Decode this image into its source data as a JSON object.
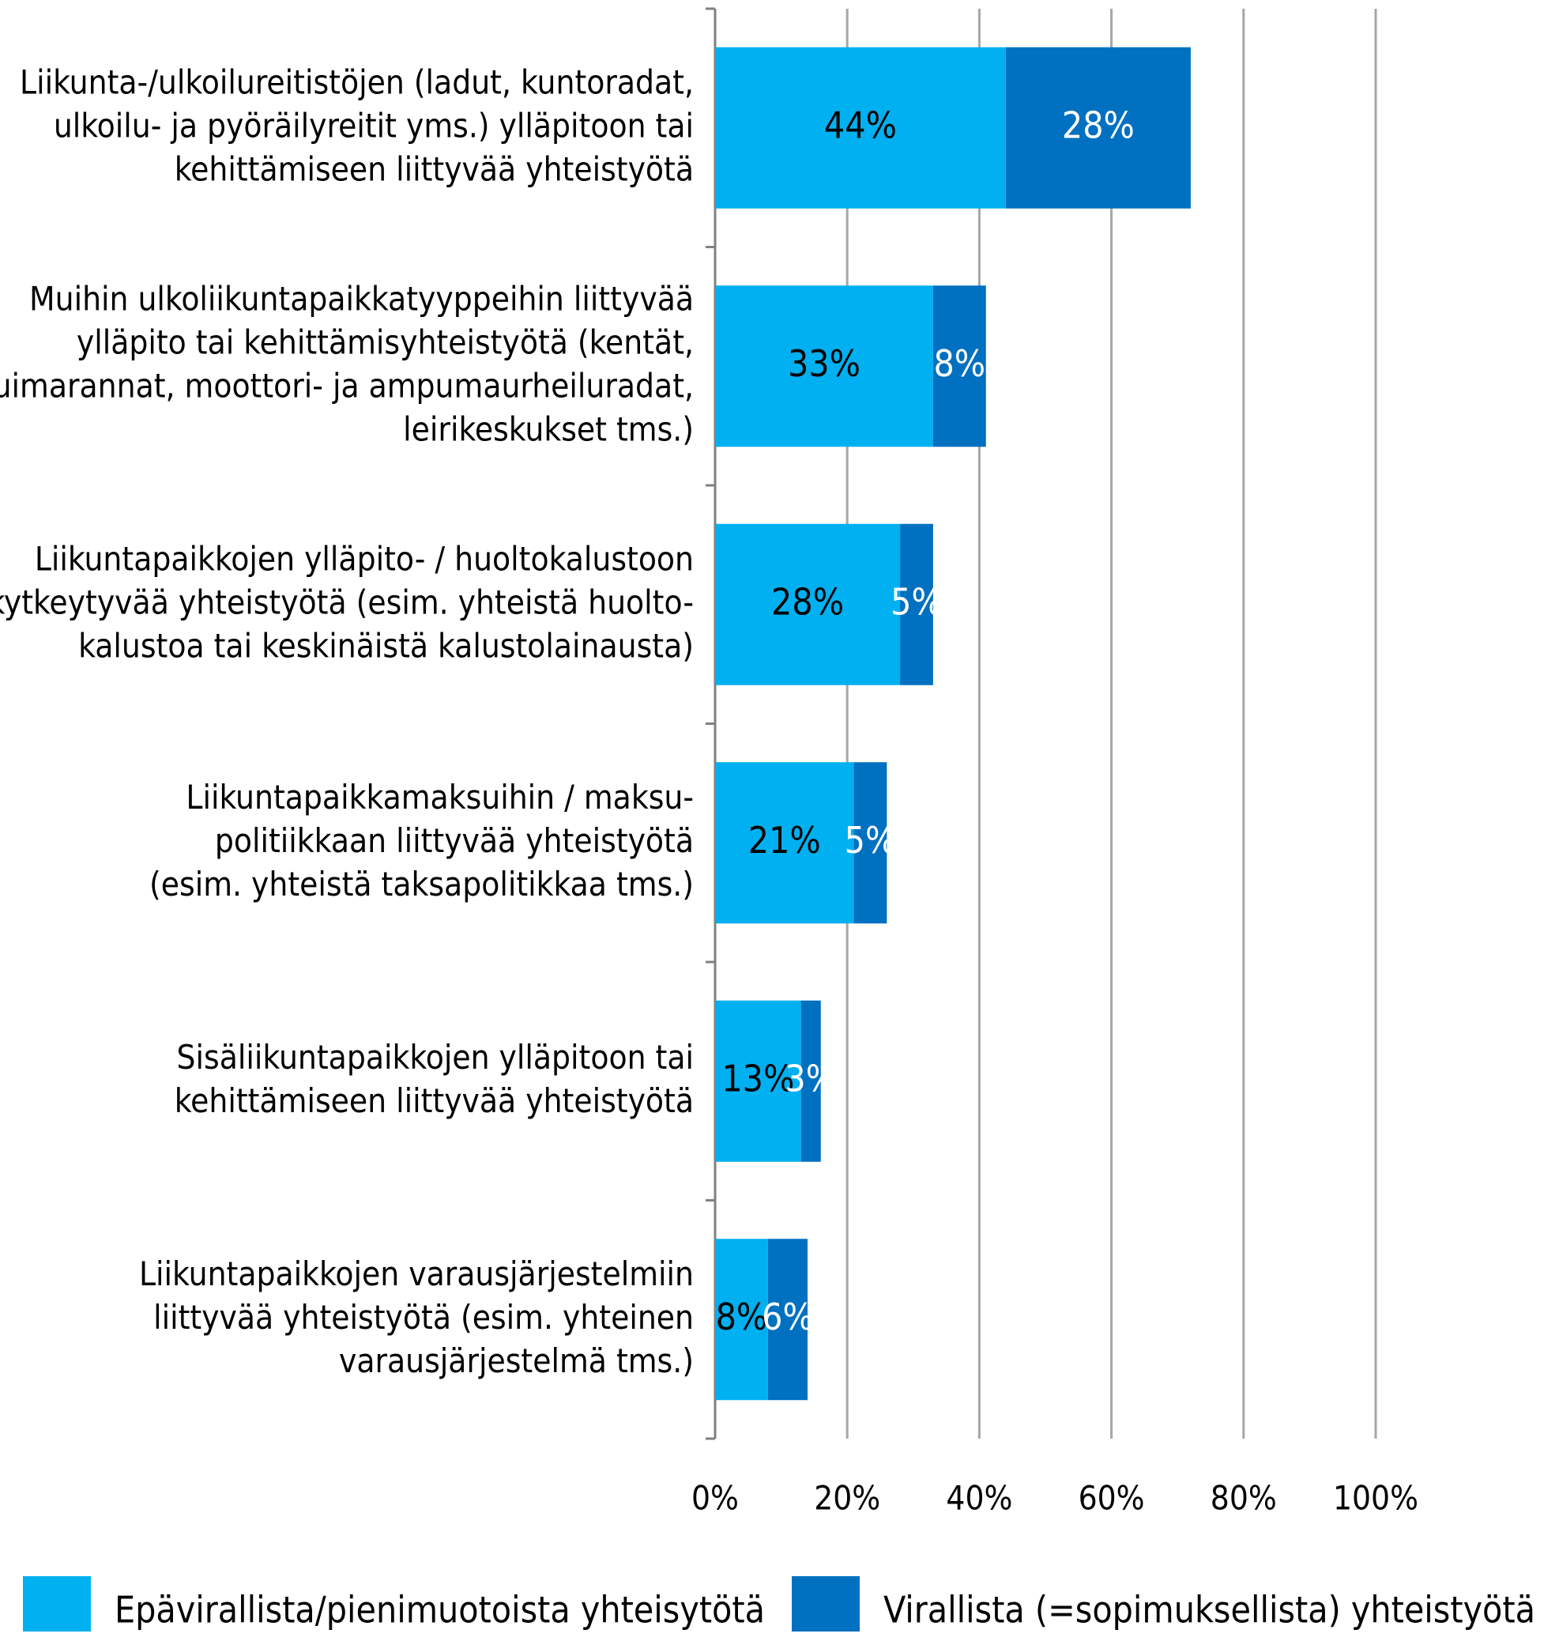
{
  "chart_data": {
    "type": "stacked-barh",
    "categories": [
      [
        "Liikunta-/ulkoilureitistöjen (ladut, kuntoradat,",
        "ulkoilu- ja pyöräilyreitit yms.) ylläpitoon tai",
        "kehittämiseen liittyvää yhteistyötä"
      ],
      [
        "Muihin ulkoliikuntapaikkatyyppeihin liittyvää",
        "ylläpito tai kehittämisyhteistyötä (kentät,",
        "uimarannat, moottori- ja ampumaurheiluradat,",
        "leirikeskukset tms.)"
      ],
      [
        "Liikuntapaikkojen ylläpito- / huoltokalustoon",
        "kytkeytyvää yhteistyötä (esim. yhteistä huolto-",
        "kalustoa tai keskinäistä kalustolainausta)"
      ],
      [
        "Liikuntapaikkamaksuihin / maksu-",
        "politiikkaan liittyvää yhteistyötä",
        "(esim. yhteistä taksapolitikkaa tms.)"
      ],
      [
        "Sisäliikuntapaikkojen ylläpitoon tai",
        "kehittämiseen liittyvää yhteistyötä"
      ],
      [
        "Liikuntapaikkojen varausjärjestelmiin",
        "liittyvää yhteistyötä (esim. yhteinen",
        "varausjärjestelmä tms.)"
      ]
    ],
    "series": [
      {
        "name": "Epävirallista/pienimuotoista yhteisytötä",
        "color": "#00b0f0",
        "label_color": "#000000",
        "values": [
          44,
          33,
          28,
          21,
          13,
          8
        ],
        "value_labels": [
          "44%",
          "33%",
          "28%",
          "21%",
          "13%",
          "8%"
        ]
      },
      {
        "name": "Virallista (=sopimuksellista) yhteistyötä",
        "color": "#0070c0",
        "label_color": "#ffffff",
        "values": [
          28,
          8,
          5,
          5,
          3,
          6
        ],
        "value_labels": [
          "28%",
          "8%",
          "5%",
          "5%",
          "3%",
          "6%"
        ]
      }
    ],
    "xlim": [
      0,
      100
    ],
    "xticks": [
      {
        "value": 0,
        "label": "0%"
      },
      {
        "value": 20,
        "label": "20%"
      },
      {
        "value": 40,
        "label": "40%"
      },
      {
        "value": 60,
        "label": "60%"
      },
      {
        "value": 80,
        "label": "80%"
      },
      {
        "value": 100,
        "label": "100%"
      }
    ],
    "grid": true,
    "legend": "bottom"
  }
}
